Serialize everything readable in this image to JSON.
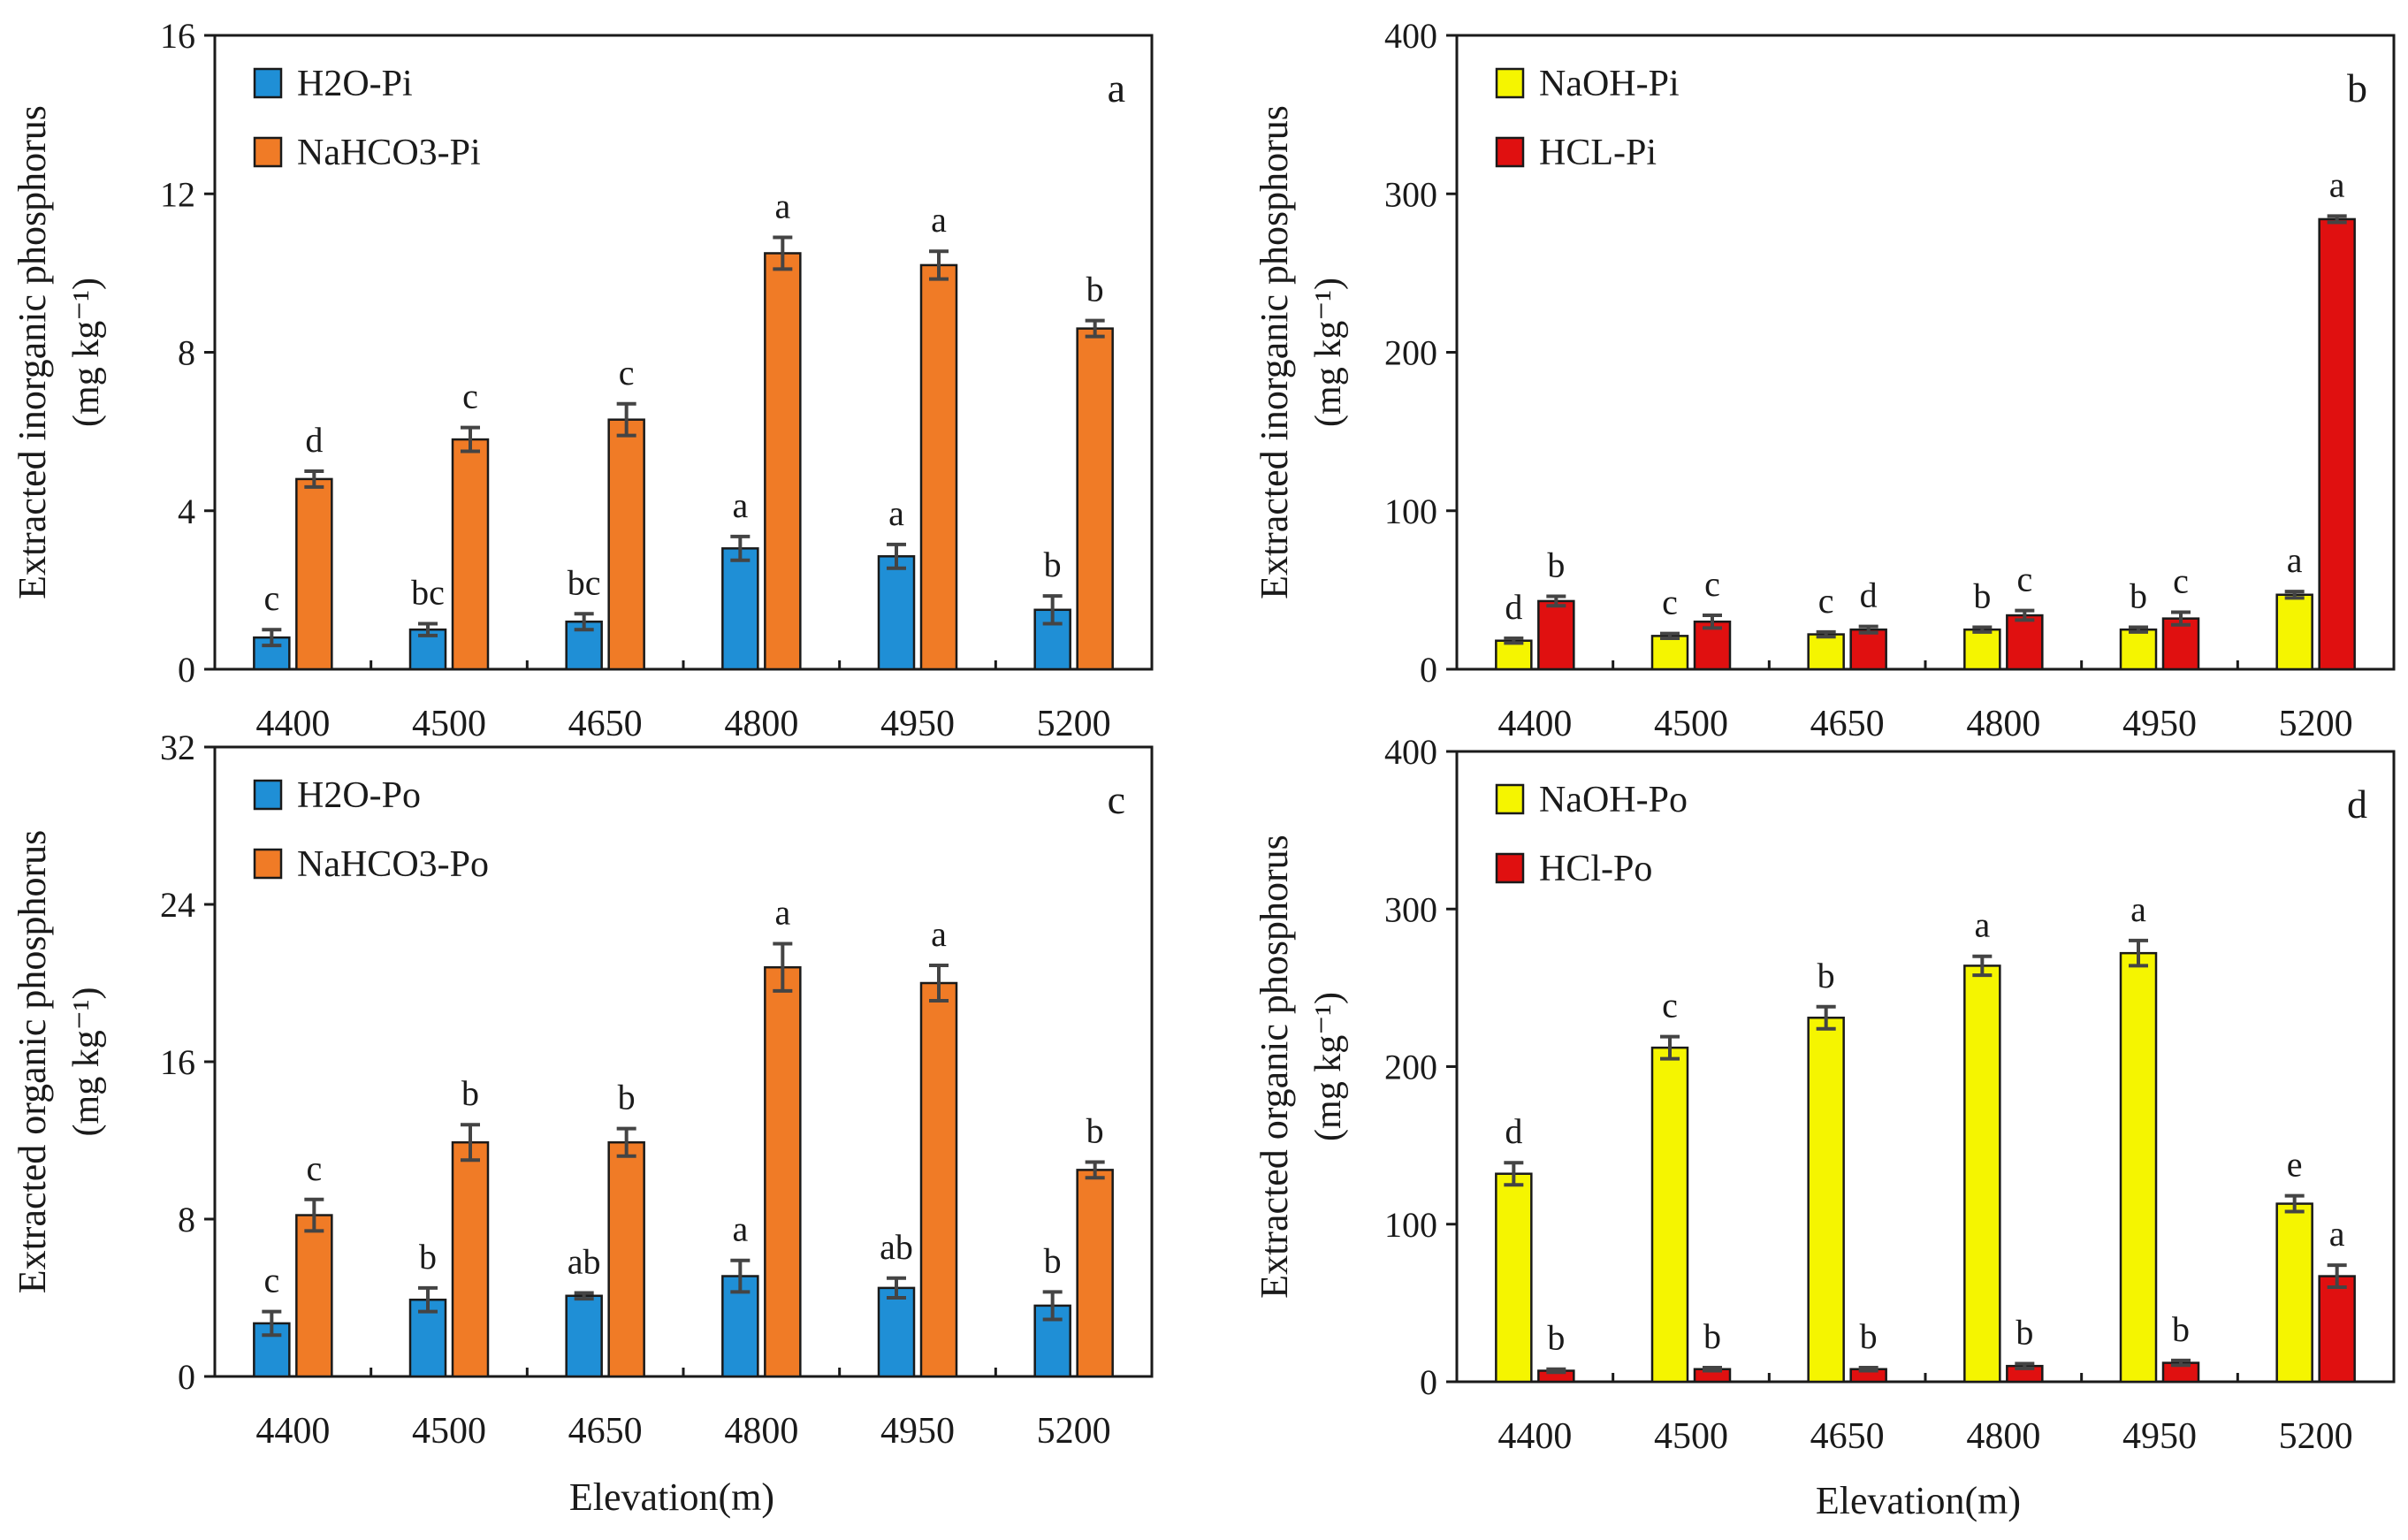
{
  "colors": {
    "blue": "#1f8fd6",
    "orange": "#f07b26",
    "yellow": "#f5f500",
    "red": "#e01010",
    "axis": "#1a1a1a",
    "errorbar": "#444444"
  },
  "x_axis_label": "Elevation(m)",
  "chart_data": [
    {
      "type": "bar",
      "panel_letter": "a",
      "ylabel": "Extracted inorganic phosphorus",
      "ylabel_units": "(mg kg⁻¹)",
      "ylim": [
        0,
        16
      ],
      "yticks": [
        0,
        4,
        8,
        12,
        16
      ],
      "categories": [
        "4400",
        "4500",
        "4650",
        "4800",
        "4950",
        "5200"
      ],
      "series": [
        {
          "name": "H2O-Pi",
          "color": "#1f8fd6",
          "values": [
            0.8,
            1.0,
            1.2,
            3.05,
            2.85,
            1.5
          ],
          "errors": [
            0.2,
            0.15,
            0.2,
            0.3,
            0.3,
            0.35
          ],
          "letters": [
            "c",
            "bc",
            "bc",
            "a",
            "a",
            "b"
          ]
        },
        {
          "name": "NaHCO3-Pi",
          "color": "#f07b26",
          "values": [
            4.8,
            5.8,
            6.3,
            10.5,
            10.2,
            8.6
          ],
          "errors": [
            0.2,
            0.3,
            0.4,
            0.4,
            0.35,
            0.2
          ],
          "letters": [
            "d",
            "c",
            "c",
            "a",
            "a",
            "b"
          ]
        }
      ]
    },
    {
      "type": "bar",
      "panel_letter": "b",
      "ylabel": "Extracted inorganic phosphorus",
      "ylabel_units": "(mg kg⁻¹)",
      "ylim": [
        0,
        400
      ],
      "yticks": [
        0,
        100,
        200,
        300,
        400
      ],
      "categories": [
        "4400",
        "4500",
        "4650",
        "4800",
        "4950",
        "5200"
      ],
      "series": [
        {
          "name": "NaOH-Pi",
          "color": "#f5f500",
          "values": [
            18,
            21,
            22,
            25,
            25,
            47
          ],
          "errors": [
            1.5,
            1.5,
            1.5,
            1.5,
            1.5,
            2
          ],
          "letters": [
            "d",
            "c",
            "c",
            "b",
            "b",
            "a"
          ]
        },
        {
          "name": "HCL-Pi",
          "color": "#e01010",
          "values": [
            43,
            30,
            25,
            34,
            32,
            284
          ],
          "errors": [
            3,
            4,
            2,
            3,
            4,
            2
          ],
          "letters": [
            "b",
            "c",
            "d",
            "c",
            "c",
            "a"
          ]
        }
      ]
    },
    {
      "type": "bar",
      "panel_letter": "c",
      "ylabel": "Extracted organic phosphorus",
      "ylabel_units": "(mg kg⁻¹)",
      "ylim": [
        0,
        32
      ],
      "yticks": [
        0,
        8,
        16,
        24,
        32
      ],
      "categories": [
        "4400",
        "4500",
        "4650",
        "4800",
        "4950",
        "5200"
      ],
      "series": [
        {
          "name": "H2O-Po",
          "color": "#1f8fd6",
          "values": [
            2.7,
            3.9,
            4.1,
            5.1,
            4.5,
            3.6
          ],
          "errors": [
            0.6,
            0.6,
            0.15,
            0.8,
            0.5,
            0.7
          ],
          "letters": [
            "c",
            "b",
            "ab",
            "a",
            "ab",
            "b"
          ]
        },
        {
          "name": "NaHCO3-Po",
          "color": "#f07b26",
          "values": [
            8.2,
            11.9,
            11.9,
            20.8,
            20.0,
            10.5
          ],
          "errors": [
            0.8,
            0.9,
            0.7,
            1.2,
            0.9,
            0.4
          ],
          "letters": [
            "c",
            "b",
            "b",
            "a",
            "a",
            "b"
          ]
        }
      ]
    },
    {
      "type": "bar",
      "panel_letter": "d",
      "ylabel": "Extracted organic phosphorus",
      "ylabel_units": "(mg kg⁻¹)",
      "ylim": [
        0,
        400
      ],
      "yticks": [
        0,
        100,
        200,
        300,
        400
      ],
      "categories": [
        "4400",
        "4500",
        "4650",
        "4800",
        "4950",
        "5200"
      ],
      "series": [
        {
          "name": "NaOH-Po",
          "color": "#f5f500",
          "values": [
            132,
            212,
            231,
            264,
            272,
            113
          ],
          "errors": [
            7,
            7,
            7,
            6,
            8,
            5
          ],
          "letters": [
            "d",
            "c",
            "b",
            "a",
            "a",
            "e"
          ]
        },
        {
          "name": "HCl-Po",
          "color": "#e01010",
          "values": [
            7,
            8,
            8,
            10,
            12,
            67
          ],
          "errors": [
            1,
            1,
            1,
            1.5,
            1.5,
            7
          ],
          "letters": [
            "b",
            "b",
            "b",
            "b",
            "b",
            "a"
          ]
        }
      ]
    }
  ]
}
